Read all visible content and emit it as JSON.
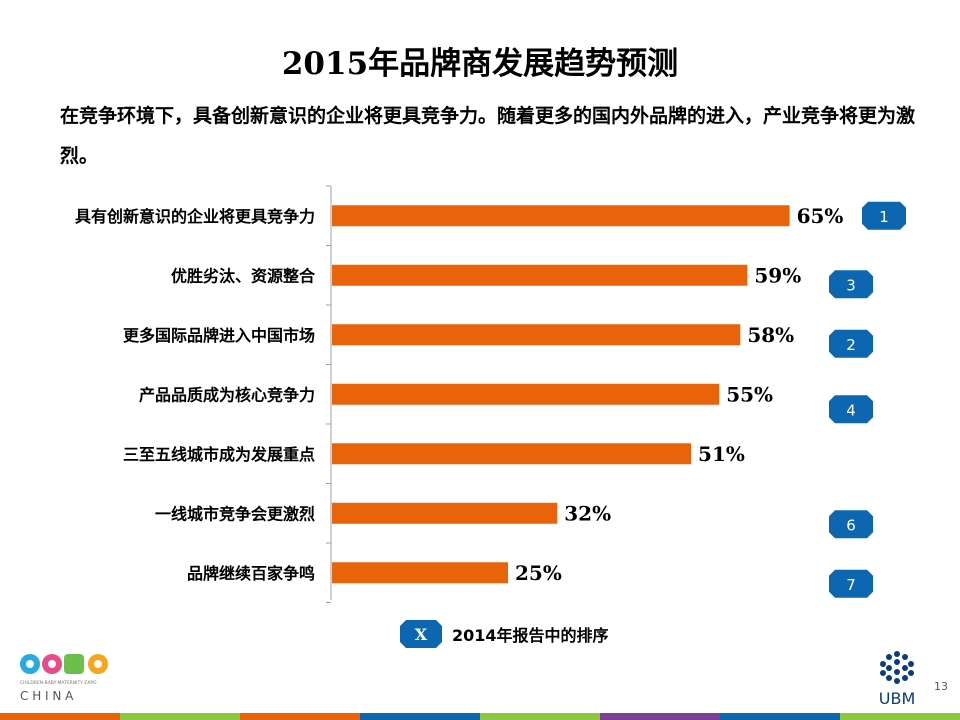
{
  "title": "2015年品牌商发展趋势预测",
  "subtitle": "在竞争环境下，具备创新意识的企业将更具竞争力。随着更多的国内外品牌的进入，产业竞争将更为激烈。",
  "chart_data": {
    "type": "bar",
    "orientation": "horizontal",
    "categories": [
      "具有创新意识的企业将更具竞争力",
      "优胜劣汰、资源整合",
      "更多国际品牌进入中国市场",
      "产品品质成为核心竞争力",
      "三至五线城市成为发展重点",
      "一线城市竞争会更激烈",
      "品牌继续百家争鸣"
    ],
    "values": [
      65,
      59,
      58,
      55,
      51,
      32,
      25
    ],
    "value_labels": [
      "65%",
      "59%",
      "58%",
      "55%",
      "51%",
      "32%",
      "25%"
    ],
    "rank_2014": [
      "1",
      "3",
      "2",
      "4",
      "",
      "6",
      "7"
    ],
    "xlim": [
      0,
      100
    ],
    "grid": false,
    "bar_color": "#e8630a",
    "badge_color": "#0c67b0"
  },
  "legend": {
    "badge": "X",
    "text": "2014年报告中的排序"
  },
  "logo": {
    "name": "CBME",
    "tagline": "CHILDREN-BABY-MATERNITY EXPO",
    "sub": "C H I N A"
  },
  "ubm": {
    "name": "UBM"
  },
  "page_number": "13",
  "footer_colors": [
    "#e8630a",
    "#8dc63f",
    "#e8630a",
    "#0c67b0",
    "#8dc63f",
    "#7b3f98",
    "#0c67b0",
    "#8dc63f"
  ]
}
